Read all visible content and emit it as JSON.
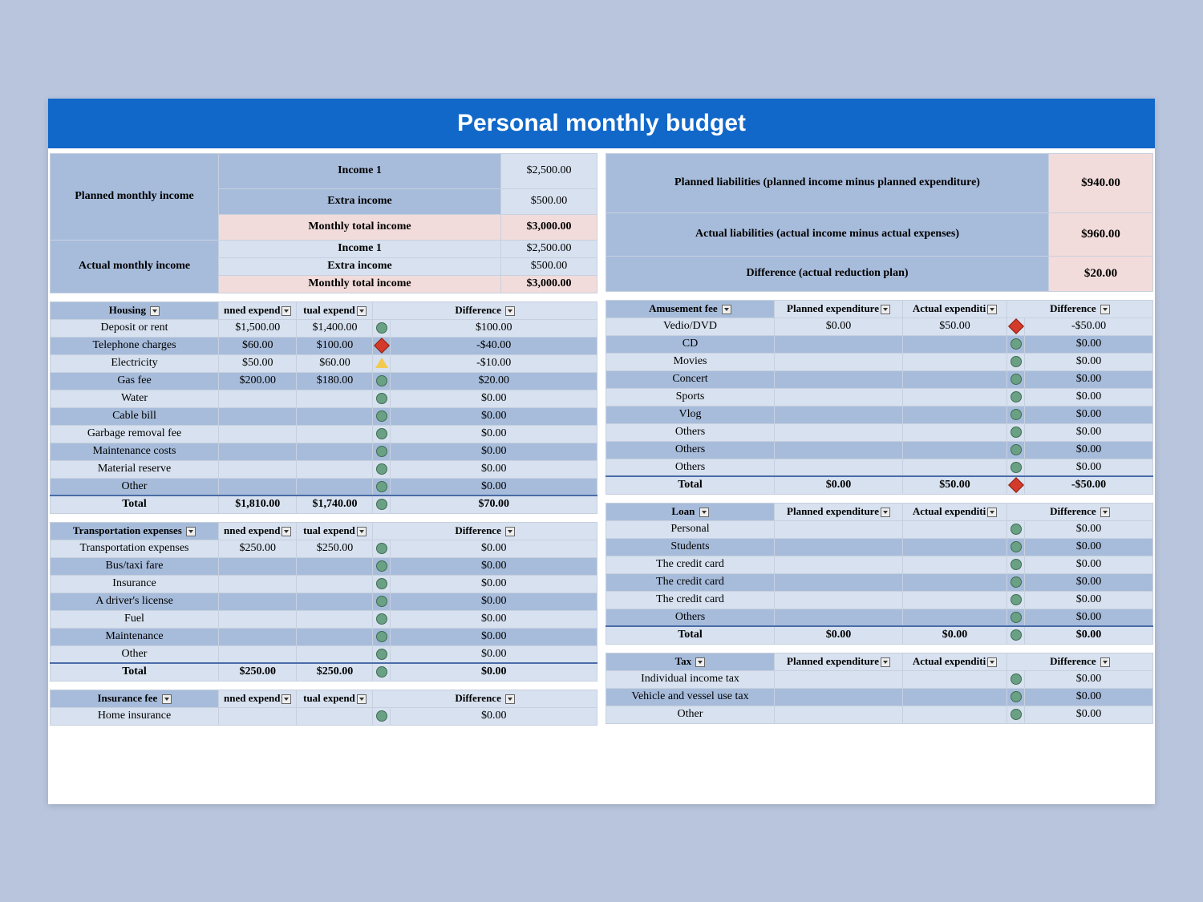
{
  "title": "Personal monthly budget",
  "colors": {
    "page_bg": "#b8c5dd",
    "title_bg": "#1168c9",
    "header_blue": "#a7bcdb",
    "row_light": "#d7e1ef",
    "pink": "#f2dcdb",
    "border": "#c7d0de",
    "ind_green": "#6aa184",
    "ind_red": "#d43a2a",
    "ind_yellow": "#f2c94c"
  },
  "income": {
    "planned": {
      "label": "Planned monthly income",
      "rows": [
        {
          "label": "Income 1",
          "value": "$2,500.00",
          "bg": "blue"
        },
        {
          "label": "Extra income",
          "value": "$500.00",
          "bg": "blue"
        },
        {
          "label": "Monthly total income",
          "value": "$3,000.00",
          "bg": "pink",
          "bold": true
        }
      ]
    },
    "actual": {
      "label": "Actual monthly income",
      "rows": [
        {
          "label": "Income 1",
          "value": "$2,500.00",
          "bg": "lt"
        },
        {
          "label": "Extra income",
          "value": "$500.00",
          "bg": "lt"
        },
        {
          "label": "Monthly total income",
          "value": "$3,000.00",
          "bg": "pink",
          "bold": true
        }
      ]
    }
  },
  "liabilities": [
    {
      "label": "Planned liabilities (planned income minus planned expenditure)",
      "value": "$940.00",
      "tall": true
    },
    {
      "label": "Actual liabilities (actual income minus actual expenses)",
      "value": "$960.00"
    },
    {
      "label": "Difference (actual reduction plan)",
      "value": "$20.00"
    }
  ],
  "headers": {
    "planned": "nned expend",
    "actual": "tual expend",
    "planned_full": "Planned expenditure",
    "actual_full": "Actual expenditi",
    "diff": "Difference"
  },
  "tables_left": [
    {
      "title": "Housing",
      "rows": [
        {
          "label": "Deposit or rent",
          "planned": "$1,500.00",
          "actual": "$1,400.00",
          "ind": "green",
          "diff": "$100.00"
        },
        {
          "label": "Telephone charges",
          "planned": "$60.00",
          "actual": "$100.00",
          "ind": "red",
          "diff": "-$40.00"
        },
        {
          "label": "Electricity",
          "planned": "$50.00",
          "actual": "$60.00",
          "ind": "yellow",
          "diff": "-$10.00"
        },
        {
          "label": "Gas fee",
          "planned": "$200.00",
          "actual": "$180.00",
          "ind": "green",
          "diff": "$20.00"
        },
        {
          "label": "Water",
          "planned": "",
          "actual": "",
          "ind": "green",
          "diff": "$0.00"
        },
        {
          "label": "Cable bill",
          "planned": "",
          "actual": "",
          "ind": "green",
          "diff": "$0.00"
        },
        {
          "label": "Garbage removal fee",
          "planned": "",
          "actual": "",
          "ind": "green",
          "diff": "$0.00"
        },
        {
          "label": "Maintenance costs",
          "planned": "",
          "actual": "",
          "ind": "green",
          "diff": "$0.00"
        },
        {
          "label": "Material reserve",
          "planned": "",
          "actual": "",
          "ind": "green",
          "diff": "$0.00"
        },
        {
          "label": "Other",
          "planned": "",
          "actual": "",
          "ind": "green",
          "diff": "$0.00"
        }
      ],
      "total": {
        "label": "Total",
        "planned": "$1,810.00",
        "actual": "$1,740.00",
        "ind": "green",
        "diff": "$70.00"
      }
    },
    {
      "title": "Transportation expenses",
      "rows": [
        {
          "label": "Transportation expenses",
          "planned": "$250.00",
          "actual": "$250.00",
          "ind": "green",
          "diff": "$0.00"
        },
        {
          "label": "Bus/taxi fare",
          "planned": "",
          "actual": "",
          "ind": "green",
          "diff": "$0.00"
        },
        {
          "label": "Insurance",
          "planned": "",
          "actual": "",
          "ind": "green",
          "diff": "$0.00"
        },
        {
          "label": "A driver's license",
          "planned": "",
          "actual": "",
          "ind": "green",
          "diff": "$0.00"
        },
        {
          "label": "Fuel",
          "planned": "",
          "actual": "",
          "ind": "green",
          "diff": "$0.00"
        },
        {
          "label": "Maintenance",
          "planned": "",
          "actual": "",
          "ind": "green",
          "diff": "$0.00"
        },
        {
          "label": "Other",
          "planned": "",
          "actual": "",
          "ind": "green",
          "diff": "$0.00"
        }
      ],
      "total": {
        "label": "Total",
        "planned": "$250.00",
        "actual": "$250.00",
        "ind": "green",
        "diff": "$0.00"
      }
    },
    {
      "title": "Insurance fee",
      "rows": [
        {
          "label": "Home insurance",
          "planned": "",
          "actual": "",
          "ind": "green",
          "diff": "$0.00"
        }
      ]
    }
  ],
  "tables_right": [
    {
      "title": "Amusement fee",
      "rows": [
        {
          "label": "Vedio/DVD",
          "planned": "$0.00",
          "actual": "$50.00",
          "ind": "red",
          "diff": "-$50.00"
        },
        {
          "label": "CD",
          "planned": "",
          "actual": "",
          "ind": "green",
          "diff": "$0.00"
        },
        {
          "label": "Movies",
          "planned": "",
          "actual": "",
          "ind": "green",
          "diff": "$0.00"
        },
        {
          "label": "Concert",
          "planned": "",
          "actual": "",
          "ind": "green",
          "diff": "$0.00"
        },
        {
          "label": "Sports",
          "planned": "",
          "actual": "",
          "ind": "green",
          "diff": "$0.00"
        },
        {
          "label": "Vlog",
          "planned": "",
          "actual": "",
          "ind": "green",
          "diff": "$0.00"
        },
        {
          "label": "Others",
          "planned": "",
          "actual": "",
          "ind": "green",
          "diff": "$0.00"
        },
        {
          "label": "Others",
          "planned": "",
          "actual": "",
          "ind": "green",
          "diff": "$0.00"
        },
        {
          "label": "Others",
          "planned": "",
          "actual": "",
          "ind": "green",
          "diff": "$0.00"
        }
      ],
      "total": {
        "label": "Total",
        "planned": "$0.00",
        "actual": "$50.00",
        "ind": "red",
        "diff": "-$50.00"
      }
    },
    {
      "title": "Loan",
      "rows": [
        {
          "label": "Personal",
          "planned": "",
          "actual": "",
          "ind": "green",
          "diff": "$0.00"
        },
        {
          "label": "Students",
          "planned": "",
          "actual": "",
          "ind": "green",
          "diff": "$0.00"
        },
        {
          "label": "The credit card",
          "planned": "",
          "actual": "",
          "ind": "green",
          "diff": "$0.00"
        },
        {
          "label": "The credit card",
          "planned": "",
          "actual": "",
          "ind": "green",
          "diff": "$0.00"
        },
        {
          "label": "The credit card",
          "planned": "",
          "actual": "",
          "ind": "green",
          "diff": "$0.00"
        },
        {
          "label": "Others",
          "planned": "",
          "actual": "",
          "ind": "green",
          "diff": "$0.00"
        }
      ],
      "total": {
        "label": "Total",
        "planned": "$0.00",
        "actual": "$0.00",
        "ind": "green",
        "diff": "$0.00"
      }
    },
    {
      "title": "Tax",
      "rows": [
        {
          "label": "Individual income tax",
          "planned": "",
          "actual": "",
          "ind": "green",
          "diff": "$0.00"
        },
        {
          "label": "Vehicle and vessel use tax",
          "planned": "",
          "actual": "",
          "ind": "green",
          "diff": "$0.00"
        },
        {
          "label": "Other",
          "planned": "",
          "actual": "",
          "ind": "green",
          "diff": "$0.00"
        }
      ]
    }
  ]
}
